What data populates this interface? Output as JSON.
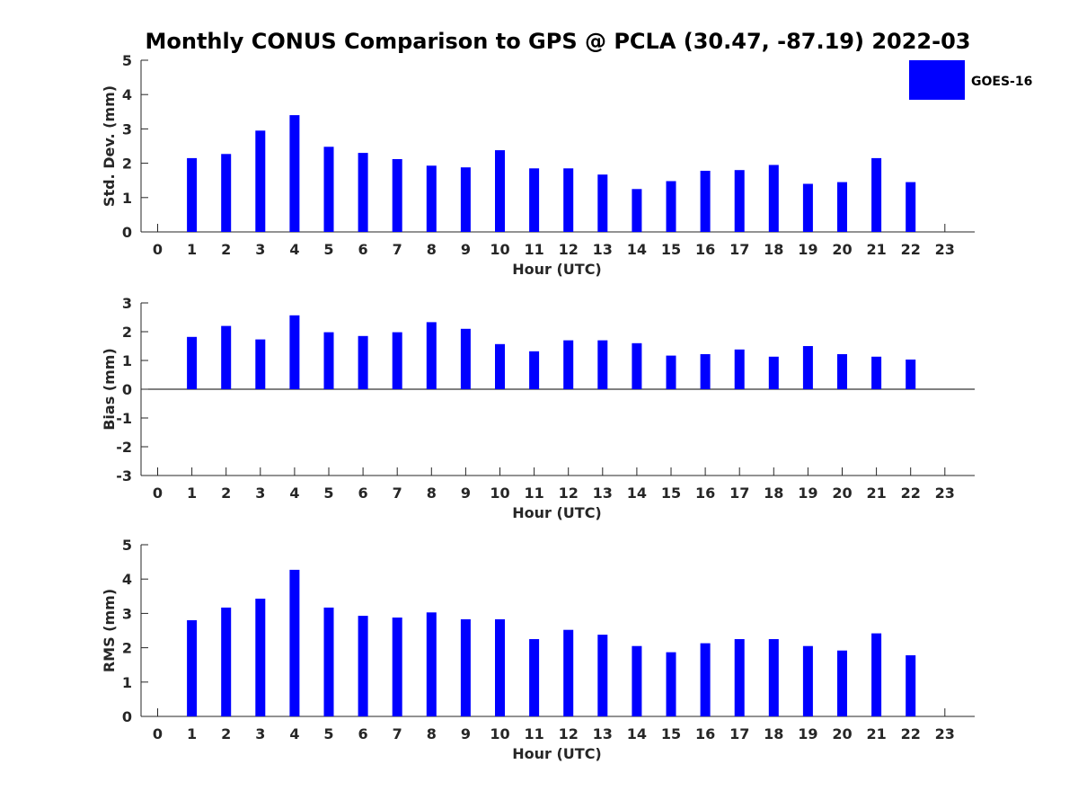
{
  "title": "Monthly CONUS Comparison to GPS @ PCLA (30.47, -87.19) 2022-03",
  "legend": {
    "label": "GOES-16",
    "position": "top-right"
  },
  "colors": {
    "bar": "#0000ff",
    "axis": "#262626"
  },
  "chart_data": [
    {
      "type": "bar",
      "xlabel": "Hour (UTC)",
      "ylabel": "Std. Dev. (mm)",
      "ylim": [
        0,
        5
      ],
      "yticks": [
        0,
        1,
        2,
        3,
        4,
        5
      ],
      "xticks": [
        0,
        1,
        2,
        3,
        4,
        5,
        6,
        7,
        8,
        9,
        10,
        11,
        12,
        13,
        14,
        15,
        16,
        17,
        18,
        19,
        20,
        21,
        22,
        23
      ],
      "series": [
        {
          "name": "GOES-16",
          "x": [
            1,
            2,
            3,
            4,
            5,
            6,
            7,
            8,
            9,
            10,
            11,
            12,
            13,
            14,
            15,
            16,
            17,
            18,
            19,
            20,
            21,
            22
          ],
          "values": [
            2.15,
            2.27,
            2.95,
            3.4,
            2.48,
            2.3,
            2.12,
            1.93,
            1.88,
            2.38,
            1.85,
            1.85,
            1.67,
            1.25,
            1.48,
            1.78,
            1.8,
            1.95,
            1.4,
            1.45,
            2.15,
            1.45
          ]
        }
      ]
    },
    {
      "type": "bar",
      "xlabel": "Hour (UTC)",
      "ylabel": "Bias (mm)",
      "ylim": [
        -3,
        3
      ],
      "yticks": [
        -3,
        -2,
        -1,
        0,
        1,
        2,
        3
      ],
      "xticks": [
        0,
        1,
        2,
        3,
        4,
        5,
        6,
        7,
        8,
        9,
        10,
        11,
        12,
        13,
        14,
        15,
        16,
        17,
        18,
        19,
        20,
        21,
        22,
        23
      ],
      "series": [
        {
          "name": "GOES-16",
          "x": [
            1,
            2,
            3,
            4,
            5,
            6,
            7,
            8,
            9,
            10,
            11,
            12,
            13,
            14,
            15,
            16,
            17,
            18,
            19,
            20,
            21,
            22
          ],
          "values": [
            1.82,
            2.2,
            1.73,
            2.57,
            1.98,
            1.85,
            1.98,
            2.33,
            2.1,
            1.57,
            1.32,
            1.7,
            1.7,
            1.6,
            1.17,
            1.22,
            1.38,
            1.13,
            1.5,
            1.22,
            1.13,
            1.03
          ]
        }
      ]
    },
    {
      "type": "bar",
      "xlabel": "Hour (UTC)",
      "ylabel": "RMS (mm)",
      "ylim": [
        0,
        5
      ],
      "yticks": [
        0,
        1,
        2,
        3,
        4,
        5
      ],
      "xticks": [
        0,
        1,
        2,
        3,
        4,
        5,
        6,
        7,
        8,
        9,
        10,
        11,
        12,
        13,
        14,
        15,
        16,
        17,
        18,
        19,
        20,
        21,
        22,
        23
      ],
      "series": [
        {
          "name": "GOES-16",
          "x": [
            1,
            2,
            3,
            4,
            5,
            6,
            7,
            8,
            9,
            10,
            11,
            12,
            13,
            14,
            15,
            16,
            17,
            18,
            19,
            20,
            21,
            22
          ],
          "values": [
            2.8,
            3.17,
            3.43,
            4.27,
            3.17,
            2.93,
            2.88,
            3.03,
            2.83,
            2.83,
            2.25,
            2.52,
            2.38,
            2.05,
            1.87,
            2.13,
            2.25,
            2.25,
            2.05,
            1.92,
            2.42,
            1.78
          ]
        }
      ]
    }
  ]
}
